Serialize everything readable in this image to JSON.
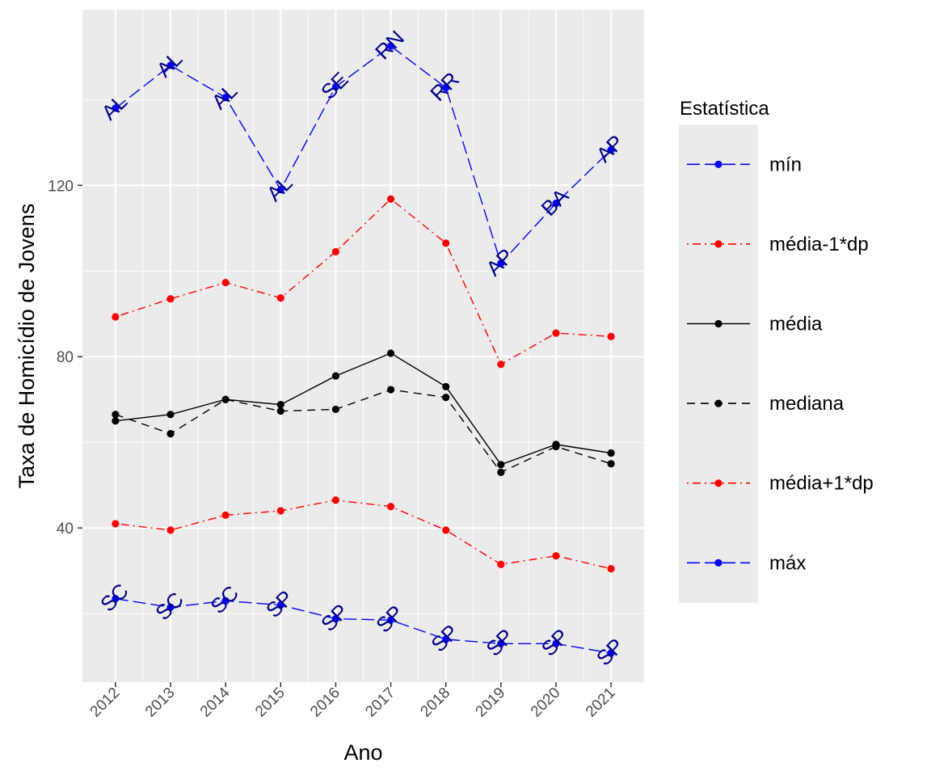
{
  "chart_data": {
    "type": "line",
    "xlabel": "Ano",
    "ylabel": "Taxa de Homicídio de Jovens",
    "x": [
      2012,
      2013,
      2014,
      2015,
      2016,
      2017,
      2018,
      2019,
      2020,
      2021
    ],
    "ylim": [
      4,
      161
    ],
    "yticks": [
      40,
      80,
      120
    ],
    "grid": true,
    "legend_title": "Estatística",
    "legend_position": "right",
    "series": [
      {
        "name": "mín",
        "key": "min",
        "color": "#0000ff",
        "linetype": "longdash",
        "values": [
          23.5,
          21.5,
          23.0,
          22.0,
          18.8,
          18.5,
          14.0,
          13.0,
          13.0,
          10.8
        ],
        "labels": [
          "SC",
          "SC",
          "SC",
          "SP",
          "SP",
          "SP",
          "SP",
          "SP",
          "SP",
          "SP"
        ]
      },
      {
        "name": "média-1*dp",
        "key": "mean_minus_sd",
        "color": "#ff0000",
        "linetype": "dotdash",
        "values": [
          41.0,
          39.5,
          43.0,
          44.0,
          46.5,
          45.0,
          39.5,
          31.5,
          33.5,
          30.5
        ]
      },
      {
        "name": "média",
        "key": "mean",
        "color": "#000000",
        "linetype": "solid",
        "values": [
          65.0,
          66.5,
          70.0,
          68.8,
          75.5,
          80.8,
          73.0,
          54.8,
          59.5,
          57.5
        ]
      },
      {
        "name": "mediana",
        "key": "median",
        "color": "#000000",
        "linetype": "dashed",
        "values": [
          66.5,
          62.0,
          70.0,
          67.3,
          67.7,
          72.3,
          70.5,
          53.0,
          59.0,
          55.0
        ]
      },
      {
        "name": "média+1*dp",
        "key": "mean_plus_sd",
        "color": "#ff0000",
        "linetype": "dotdash",
        "values": [
          89.3,
          93.5,
          97.3,
          93.7,
          104.5,
          116.8,
          106.5,
          78.2,
          85.5,
          84.7
        ]
      },
      {
        "name": "máx",
        "key": "max",
        "color": "#0000ff",
        "linetype": "longdash",
        "values": [
          138.0,
          148.0,
          140.5,
          119.0,
          143.0,
          152.5,
          142.8,
          101.8,
          115.8,
          128.3
        ],
        "labels": [
          "AL",
          "AL",
          "AL",
          "AL",
          "SE",
          "RN",
          "RR",
          "AP",
          "BA",
          "AP"
        ]
      }
    ]
  }
}
